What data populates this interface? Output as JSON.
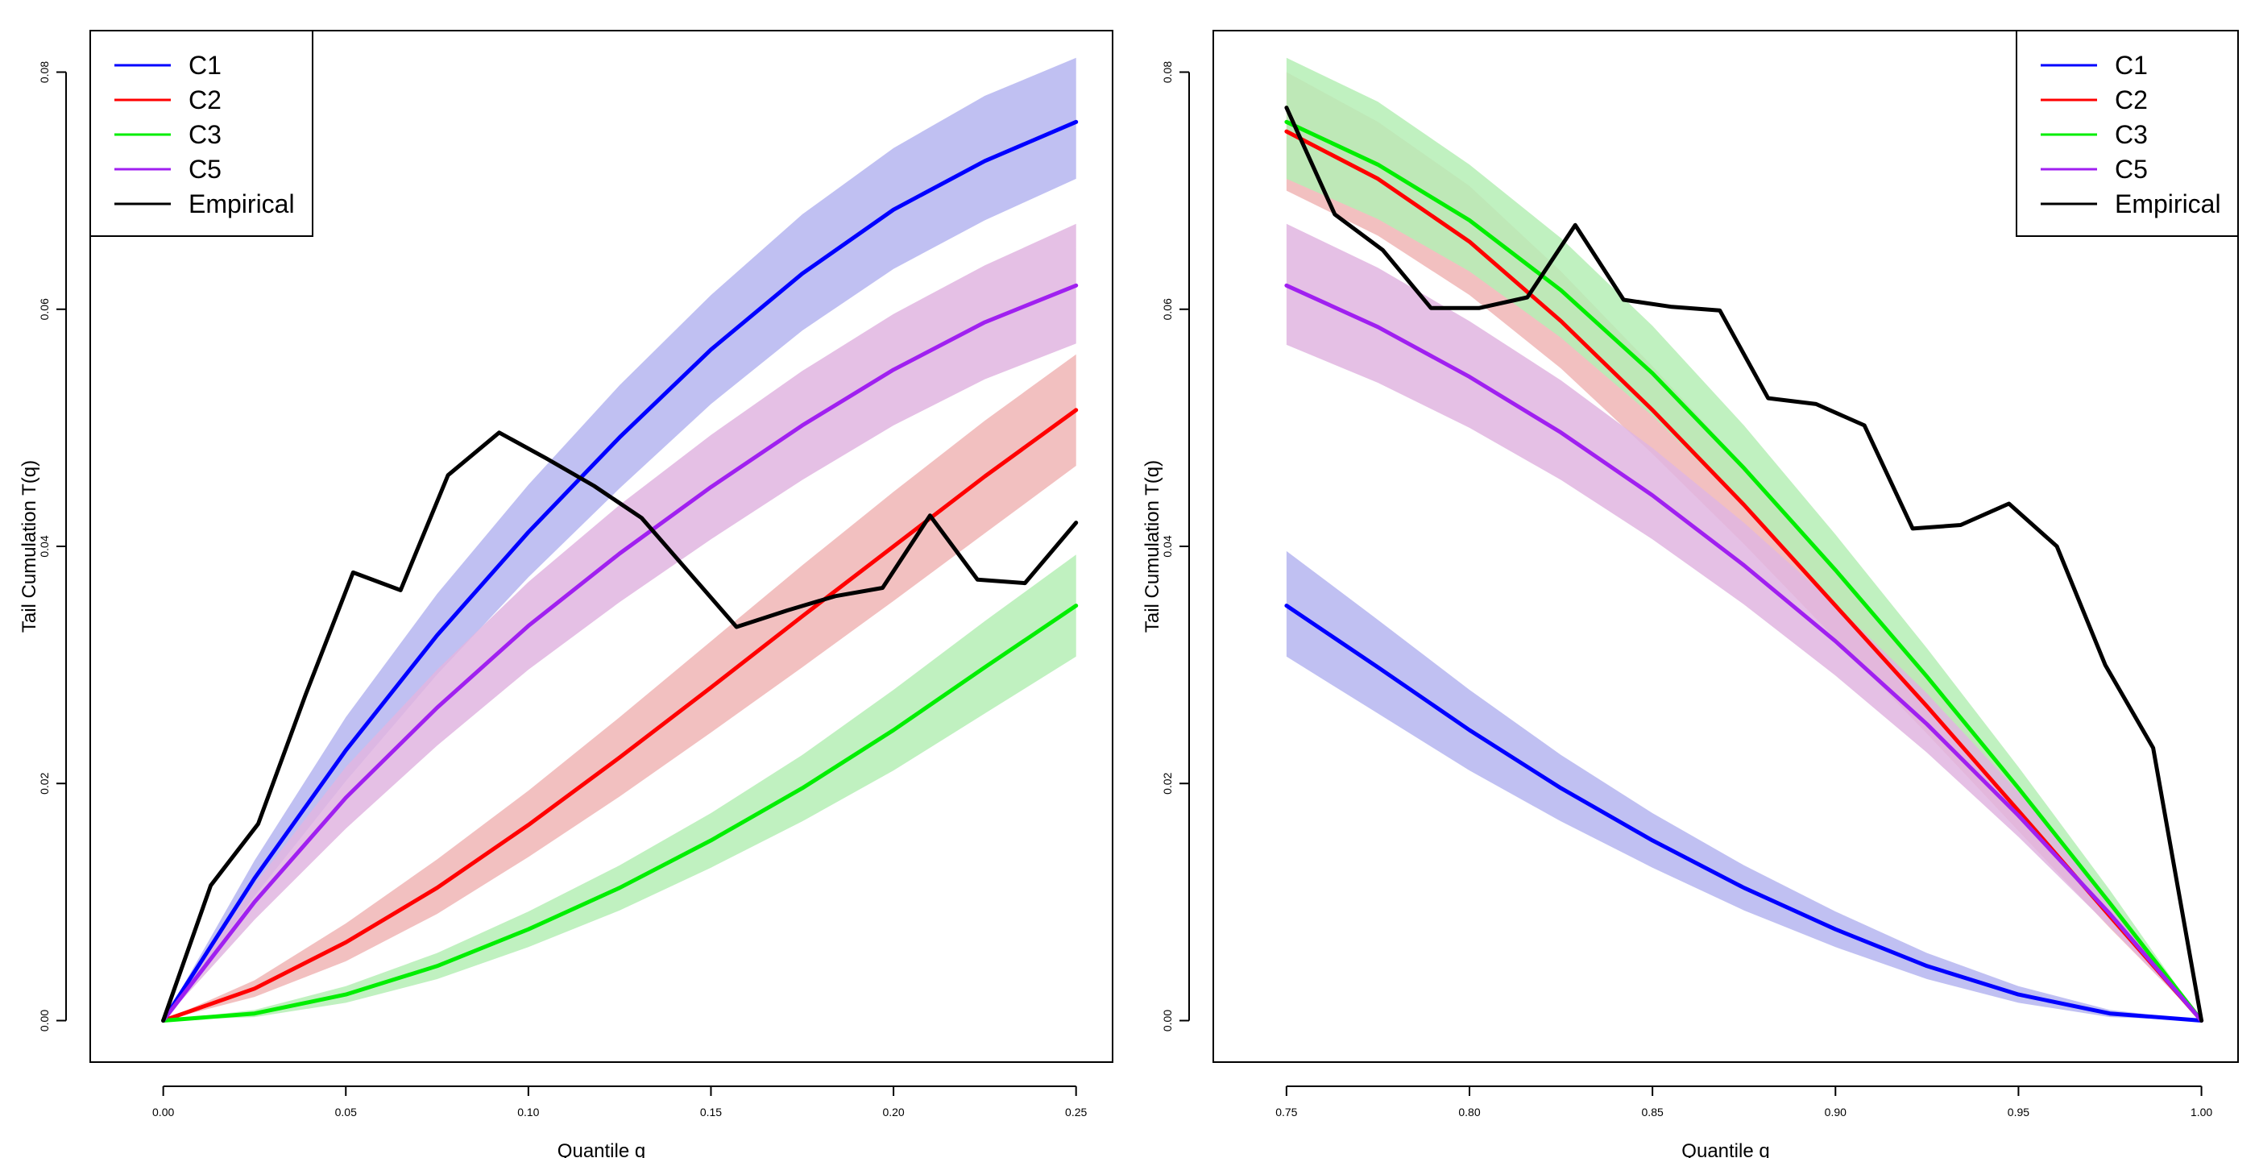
{
  "chart_data": [
    {
      "type": "line",
      "xlabel": "Quantile q",
      "ylabel": "Tail Cumulation T(q)",
      "xlim": [
        -0.02,
        0.26
      ],
      "ylim": [
        -0.0035,
        0.0835
      ],
      "xticks": [
        "0.00",
        "0.05",
        "0.10",
        "0.15",
        "0.20",
        "0.25"
      ],
      "yticks": [
        "0.00",
        "0.02",
        "0.04",
        "0.06",
        "0.08"
      ],
      "legend_position": "top-left",
      "series": [
        {
          "name": "C1",
          "color": "#0000ff",
          "band_color": "#b5b5f0",
          "x": [
            0,
            0.025,
            0.05,
            0.075,
            0.1,
            0.125,
            0.15,
            0.175,
            0.2,
            0.225,
            0.25
          ],
          "values": [
            0,
            0.012,
            0.0228,
            0.0325,
            0.0412,
            0.0492,
            0.0566,
            0.063,
            0.0684,
            0.0725,
            0.0758
          ],
          "lower": [
            0,
            0.0105,
            0.0202,
            0.0292,
            0.0374,
            0.0449,
            0.052,
            0.0582,
            0.0634,
            0.0675,
            0.071
          ],
          "upper": [
            0,
            0.0135,
            0.0256,
            0.036,
            0.0452,
            0.0536,
            0.0612,
            0.068,
            0.0736,
            0.078,
            0.0812
          ]
        },
        {
          "name": "C2",
          "color": "#ff0000",
          "band_color": "#f0b5b5",
          "x": [
            0,
            0.025,
            0.05,
            0.075,
            0.1,
            0.125,
            0.15,
            0.175,
            0.2,
            0.225,
            0.25
          ],
          "values": [
            0,
            0.0027,
            0.0066,
            0.0112,
            0.0165,
            0.0222,
            0.0281,
            0.0341,
            0.04,
            0.0459,
            0.0515
          ],
          "lower": [
            0,
            0.002,
            0.005,
            0.009,
            0.0138,
            0.0189,
            0.0243,
            0.0298,
            0.0354,
            0.0411,
            0.0468
          ],
          "upper": [
            0,
            0.0034,
            0.0082,
            0.0136,
            0.0194,
            0.0256,
            0.032,
            0.0384,
            0.0446,
            0.0506,
            0.0562
          ]
        },
        {
          "name": "C3",
          "color": "#00ee00",
          "band_color": "#b5eeb5",
          "x": [
            0,
            0.025,
            0.05,
            0.075,
            0.1,
            0.125,
            0.15,
            0.175,
            0.2,
            0.225,
            0.25
          ],
          "values": [
            0,
            0.0006,
            0.0022,
            0.0046,
            0.0077,
            0.0112,
            0.0152,
            0.0196,
            0.0245,
            0.0298,
            0.035
          ],
          "lower": [
            0,
            0.0003,
            0.0015,
            0.0035,
            0.0062,
            0.0093,
            0.0129,
            0.0168,
            0.0211,
            0.0259,
            0.0307
          ],
          "upper": [
            0,
            0.0009,
            0.0029,
            0.0057,
            0.0092,
            0.0131,
            0.0175,
            0.0224,
            0.0279,
            0.0337,
            0.0393
          ]
        },
        {
          "name": "C5",
          "color": "#a020f0",
          "band_color": "#e0b5e0",
          "x": [
            0,
            0.025,
            0.05,
            0.075,
            0.1,
            0.125,
            0.15,
            0.175,
            0.2,
            0.225,
            0.25
          ],
          "values": [
            0,
            0.01,
            0.0188,
            0.0264,
            0.0333,
            0.0394,
            0.045,
            0.0502,
            0.0549,
            0.0589,
            0.062
          ],
          "lower": [
            0,
            0.0085,
            0.0162,
            0.0232,
            0.0296,
            0.0353,
            0.0406,
            0.0456,
            0.0502,
            0.0541,
            0.0571
          ],
          "upper": [
            0,
            0.0115,
            0.0214,
            0.0296,
            0.037,
            0.0435,
            0.0494,
            0.0548,
            0.0596,
            0.0637,
            0.0672
          ]
        },
        {
          "name": "Empirical",
          "color": "#000000",
          "x": [
            0,
            0.013,
            0.026,
            0.039,
            0.052,
            0.065,
            0.078,
            0.092,
            0.105,
            0.118,
            0.131,
            0.144,
            0.157,
            0.171,
            0.184,
            0.197,
            0.21,
            0.223,
            0.236,
            0.25
          ],
          "values": [
            0,
            0.0114,
            0.0166,
            0.0275,
            0.0378,
            0.0363,
            0.046,
            0.0496,
            0.0474,
            0.0451,
            0.0424,
            0.0378,
            0.0332,
            0.0346,
            0.0358,
            0.0365,
            0.0426,
            0.0372,
            0.0369,
            0.042
          ]
        }
      ]
    },
    {
      "type": "line",
      "xlabel": "Quantile q",
      "ylabel": "Tail Cumulation T(q)",
      "xlim": [
        0.73,
        1.01
      ],
      "ylim": [
        -0.0035,
        0.0835
      ],
      "xticks": [
        "0.75",
        "0.80",
        "0.85",
        "0.90",
        "0.95",
        "1.00"
      ],
      "yticks": [
        "0.00",
        "0.02",
        "0.04",
        "0.06",
        "0.08"
      ],
      "legend_position": "top-right",
      "series": [
        {
          "name": "C1",
          "color": "#0000ff",
          "band_color": "#b5b5f0",
          "x": [
            0.75,
            0.775,
            0.8,
            0.825,
            0.85,
            0.875,
            0.9,
            0.925,
            0.95,
            0.975,
            1.0
          ],
          "values": [
            0.035,
            0.0298,
            0.0245,
            0.0196,
            0.0152,
            0.0112,
            0.0077,
            0.0046,
            0.0022,
            0.0006,
            0
          ],
          "lower": [
            0.0307,
            0.0259,
            0.0211,
            0.0168,
            0.0129,
            0.0093,
            0.0062,
            0.0035,
            0.0015,
            0.0003,
            0
          ],
          "upper": [
            0.0396,
            0.0338,
            0.0279,
            0.0224,
            0.0175,
            0.0131,
            0.0092,
            0.0057,
            0.0029,
            0.0009,
            0
          ]
        },
        {
          "name": "C2",
          "color": "#ff0000",
          "band_color": "#f0b5b5",
          "x": [
            0.75,
            0.775,
            0.8,
            0.825,
            0.85,
            0.875,
            0.9,
            0.925,
            0.95,
            0.975,
            1.0
          ],
          "values": [
            0.075,
            0.071,
            0.0657,
            0.059,
            0.0515,
            0.0435,
            0.035,
            0.0265,
            0.0177,
            0.0088,
            0
          ],
          "lower": [
            0.07,
            0.0662,
            0.0612,
            0.055,
            0.0478,
            0.0402,
            0.0322,
            0.0242,
            0.016,
            0.0078,
            0
          ],
          "upper": [
            0.08,
            0.0758,
            0.0704,
            0.0632,
            0.0552,
            0.0468,
            0.0378,
            0.0288,
            0.0194,
            0.0098,
            0
          ]
        },
        {
          "name": "C3",
          "color": "#00ee00",
          "band_color": "#b5eeb5",
          "x": [
            0.75,
            0.775,
            0.8,
            0.825,
            0.85,
            0.875,
            0.9,
            0.925,
            0.95,
            0.975,
            1.0
          ],
          "values": [
            0.0758,
            0.0722,
            0.0675,
            0.0616,
            0.0546,
            0.0466,
            0.038,
            0.029,
            0.0196,
            0.0099,
            0
          ],
          "lower": [
            0.071,
            0.0676,
            0.0632,
            0.0576,
            0.051,
            0.0434,
            0.0352,
            0.0267,
            0.0179,
            0.0089,
            0
          ],
          "upper": [
            0.0812,
            0.0775,
            0.0722,
            0.066,
            0.0586,
            0.0502,
            0.041,
            0.0314,
            0.0214,
            0.011,
            0
          ]
        },
        {
          "name": "C5",
          "color": "#a020f0",
          "band_color": "#e0b5e0",
          "x": [
            0.75,
            0.775,
            0.8,
            0.825,
            0.85,
            0.875,
            0.9,
            0.925,
            0.95,
            0.975,
            1.0
          ],
          "values": [
            0.062,
            0.0585,
            0.0543,
            0.0496,
            0.0443,
            0.0384,
            0.032,
            0.025,
            0.0173,
            0.009,
            0
          ],
          "lower": [
            0.057,
            0.0538,
            0.05,
            0.0456,
            0.0406,
            0.0351,
            0.0291,
            0.0226,
            0.0155,
            0.0079,
            0
          ],
          "upper": [
            0.0672,
            0.0635,
            0.059,
            0.054,
            0.0483,
            0.042,
            0.0351,
            0.0276,
            0.0193,
            0.0102,
            0
          ]
        },
        {
          "name": "Empirical",
          "color": "#000000",
          "x": [
            0.75,
            0.7632,
            0.7763,
            0.7895,
            0.8026,
            0.8158,
            0.8289,
            0.8421,
            0.8553,
            0.8684,
            0.8816,
            0.8947,
            0.9079,
            0.9211,
            0.9342,
            0.9474,
            0.9605,
            0.9737,
            0.9868,
            1.0
          ],
          "values": [
            0.077,
            0.068,
            0.065,
            0.0601,
            0.0601,
            0.061,
            0.0671,
            0.0608,
            0.0602,
            0.0599,
            0.0525,
            0.052,
            0.0502,
            0.0415,
            0.0418,
            0.0436,
            0.04,
            0.03,
            0.023,
            0
          ]
        }
      ]
    }
  ]
}
